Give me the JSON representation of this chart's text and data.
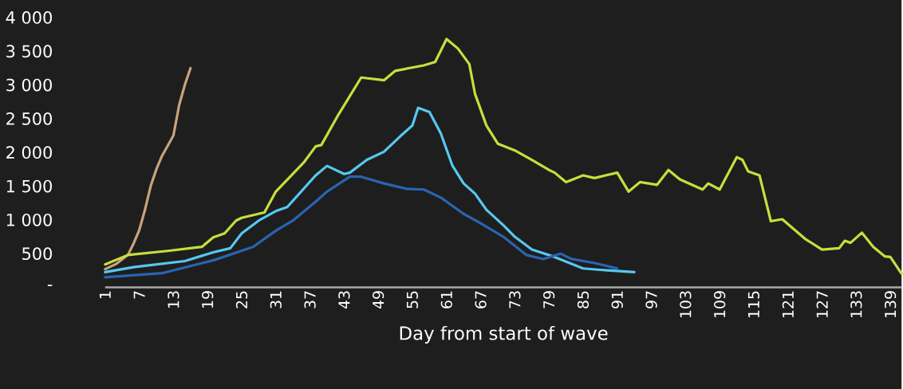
{
  "chart_data": {
    "type": "line",
    "xlabel": "Day from start of wave",
    "xlim": [
      1,
      141
    ],
    "ylim": [
      0,
      4000
    ],
    "xticks": [
      1,
      7,
      13,
      19,
      25,
      31,
      37,
      43,
      49,
      55,
      61,
      67,
      73,
      79,
      85,
      91,
      97,
      103,
      109,
      115,
      121,
      127,
      133,
      139
    ],
    "yticks": [
      {
        "value": 0,
        "label": "-"
      },
      500,
      {
        "value": 1000,
        "label": "1 000"
      },
      {
        "value": 1500,
        "label": "1 500"
      },
      {
        "value": 2000,
        "label": "2 000"
      },
      {
        "value": 2500,
        "label": "2 500"
      },
      {
        "value": 3000,
        "label": "3 000"
      },
      {
        "value": 3500,
        "label": "3 500"
      },
      {
        "value": 4000,
        "label": "4 000"
      }
    ],
    "series": [
      {
        "color": "#c9a27e",
        "x": [
          1,
          3,
          5,
          6,
          7,
          8,
          9,
          10,
          11,
          12,
          13,
          14,
          15,
          16
        ],
        "values": [
          270,
          350,
          480,
          650,
          850,
          1150,
          1500,
          1750,
          1950,
          2100,
          2250,
          2700,
          3000,
          3250
        ]
      },
      {
        "color": "#c6df3c",
        "x": [
          1,
          5,
          12,
          18,
          20,
          22,
          24,
          25,
          29,
          31,
          36,
          38,
          39,
          42,
          46,
          50,
          52,
          57,
          59,
          61,
          63,
          65,
          66,
          68,
          70,
          73,
          76,
          79,
          80,
          82,
          85,
          87,
          91,
          93,
          95,
          98,
          100,
          102,
          106,
          107,
          109,
          112,
          113,
          114,
          116,
          118,
          120,
          124,
          127,
          130,
          131,
          132,
          134,
          136,
          138,
          139,
          141
        ],
        "values": [
          340,
          480,
          540,
          600,
          740,
          800,
          990,
          1030,
          1110,
          1420,
          1860,
          2090,
          2110,
          2560,
          3110,
          3070,
          3210,
          3290,
          3340,
          3680,
          3540,
          3310,
          2870,
          2400,
          2130,
          2030,
          1890,
          1740,
          1700,
          1560,
          1660,
          1620,
          1700,
          1420,
          1560,
          1520,
          1740,
          1600,
          1450,
          1540,
          1450,
          1930,
          1890,
          1720,
          1660,
          980,
          1010,
          720,
          560,
          580,
          690,
          660,
          810,
          600,
          460,
          450,
          200
        ]
      },
      {
        "color": "#56c8f0",
        "x": [
          1,
          6,
          15,
          20,
          23,
          25,
          28,
          31,
          33,
          38,
          40,
          43,
          44,
          47,
          50,
          53,
          55,
          56,
          58,
          60,
          62,
          64,
          66,
          68,
          71,
          73,
          76,
          80,
          85,
          88,
          94
        ],
        "values": [
          225,
          300,
          390,
          520,
          580,
          800,
          990,
          1130,
          1190,
          1660,
          1800,
          1680,
          1700,
          1890,
          2010,
          2250,
          2400,
          2660,
          2600,
          2280,
          1810,
          1540,
          1390,
          1150,
          920,
          750,
          560,
          450,
          280,
          260,
          225
        ]
      },
      {
        "color": "#2a64b0",
        "x": [
          1,
          11,
          20,
          27,
          31,
          34,
          38,
          40,
          44,
          46,
          50,
          54,
          57,
          60,
          64,
          67,
          71,
          75,
          78,
          81,
          83,
          87,
          91
        ],
        "values": [
          150,
          210,
          400,
          600,
          840,
          990,
          1270,
          1420,
          1640,
          1640,
          1540,
          1460,
          1450,
          1330,
          1090,
          950,
          750,
          480,
          420,
          500,
          420,
          360,
          280
        ]
      }
    ]
  }
}
